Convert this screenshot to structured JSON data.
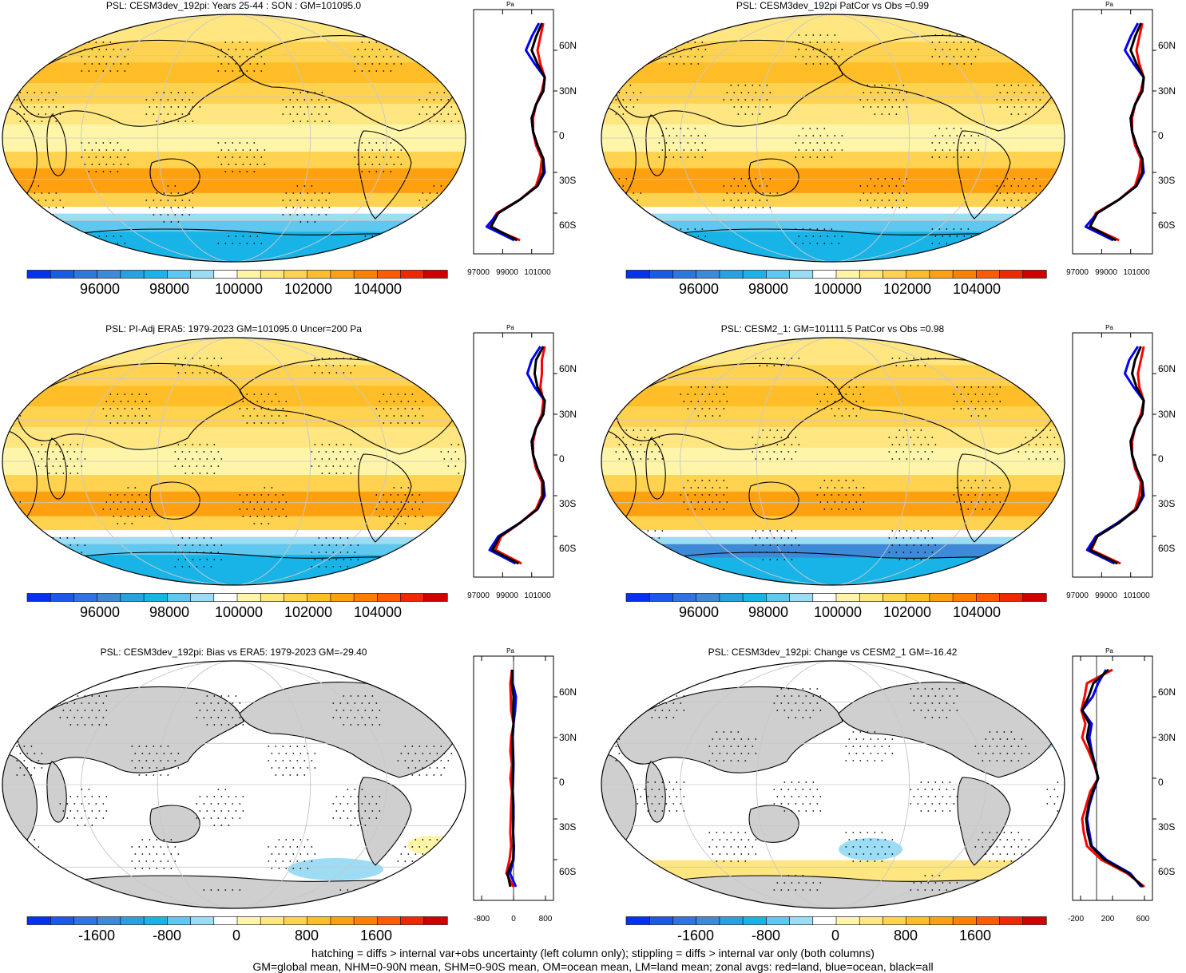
{
  "footer": {
    "line1": "hatching = diffs > internal var+obs uncertainty (left column only); stippling = diffs > internal var only (both columns)",
    "line2": "GM=global mean, NHM=0-90N mean, SHM=0-90S mean, OM=ocean mean, LM=land mean; zonal avgs: red=land, blue=ocean, black=all"
  },
  "colors": {
    "fill_colors": [
      "#0432f0",
      "#1a5ae8",
      "#2e75e0",
      "#3c8ad8",
      "#2aa0e0",
      "#18b4e8",
      "#5ec8f0",
      "#9cdcf4",
      "#ffffff",
      "#fff5a8",
      "#ffe680",
      "#ffd250",
      "#ffbe28",
      "#ffa010",
      "#ff8000",
      "#ff5a00",
      "#f02800",
      "#d00000"
    ],
    "land": "#cfcfcf",
    "grid": "#c8c8c8",
    "series_land": "#ff0000",
    "series_ocean": "#0000ff",
    "series_all": "#000000"
  },
  "chart_data": [
    {
      "id": "p1",
      "type": "contour-map",
      "title": "PSL: CESM3dev_192pi: Years 25-44 : SON : GM=101095.0",
      "colorbar": {
        "ticks": [
          "96000",
          "98000",
          "100000",
          "102000",
          "104000"
        ]
      },
      "zonal": {
        "unit": "Pa",
        "xticks": [
          "97000",
          "99000",
          "101000"
        ],
        "yticks": [
          "60N",
          "30N",
          "0",
          "30S",
          "60S"
        ],
        "series": [
          {
            "name": "land",
            "lat": [
              80,
              70,
              60,
              50,
              40,
              30,
              20,
              10,
              0,
              -10,
              -20,
              -30,
              -40,
              -50,
              -60,
              -70,
              -80
            ],
            "values": [
              101800,
              101600,
              101400,
              101600,
              101900,
              101700,
              101300,
              101100,
              101100,
              101300,
              101700,
              101600,
              101300,
              100200,
              98600,
              98000,
              100200
            ]
          },
          {
            "name": "ocean",
            "lat": [
              80,
              70,
              60,
              50,
              40,
              30,
              20,
              10,
              0,
              -10,
              -20,
              -30,
              -40,
              -50,
              -60,
              -70,
              -80
            ],
            "values": [
              101500,
              101000,
              100600,
              101200,
              101900,
              101800,
              101300,
              101000,
              101100,
              101400,
              101800,
              101900,
              101400,
              100200,
              98700,
              97900,
              99800
            ]
          },
          {
            "name": "all",
            "lat": [
              80,
              70,
              60,
              50,
              40,
              30,
              20,
              10,
              0,
              -10,
              -20,
              -30,
              -40,
              -50,
              -60,
              -70,
              -80
            ],
            "values": [
              101700,
              101300,
              101000,
              101400,
              101900,
              101800,
              101300,
              101000,
              101100,
              101400,
              101800,
              101800,
              101400,
              100200,
              98700,
              98200,
              100000
            ]
          }
        ]
      }
    },
    {
      "id": "p2",
      "type": "contour-map",
      "title": "PSL: CESM3dev_192pi PatCor vs Obs =0.99",
      "colorbar": {
        "ticks": [
          "96000",
          "98000",
          "100000",
          "102000",
          "104000"
        ]
      },
      "zonal": {
        "unit": "Pa",
        "xticks": [
          "97000",
          "99000",
          "101000"
        ],
        "yticks": [
          "60N",
          "30N",
          "0",
          "30S",
          "60S"
        ],
        "series": [
          {
            "name": "land",
            "lat": [
              80,
              70,
              60,
              50,
              40,
              30,
              20,
              10,
              0,
              -10,
              -20,
              -30,
              -40,
              -50,
              -60,
              -70,
              -80
            ],
            "values": [
              101800,
              101600,
              101400,
              101600,
              101900,
              101700,
              101300,
              101100,
              101100,
              101300,
              101700,
              101600,
              101300,
              100200,
              98600,
              98200,
              100200
            ]
          },
          {
            "name": "ocean",
            "lat": [
              80,
              70,
              60,
              50,
              40,
              30,
              20,
              10,
              0,
              -10,
              -20,
              -30,
              -40,
              -50,
              -60,
              -70,
              -80
            ],
            "values": [
              101500,
              101000,
              100600,
              101200,
              101900,
              101800,
              101300,
              101000,
              101100,
              101400,
              101800,
              101900,
              101400,
              100200,
              98700,
              97900,
              99800
            ]
          },
          {
            "name": "all",
            "lat": [
              80,
              70,
              60,
              50,
              40,
              30,
              20,
              10,
              0,
              -10,
              -20,
              -30,
              -40,
              -50,
              -60,
              -70,
              -80
            ],
            "values": [
              101700,
              101300,
              101000,
              101400,
              101900,
              101800,
              101300,
              101000,
              101100,
              101400,
              101800,
              101800,
              101400,
              100200,
              98700,
              98200,
              100000
            ]
          }
        ]
      }
    },
    {
      "id": "p3",
      "type": "contour-map",
      "title": "PSL: PI-Adj ERA5: 1979-2023 GM=101095.0 Uncer=200 Pa",
      "colorbar": {
        "ticks": [
          "96000",
          "98000",
          "100000",
          "102000",
          "104000"
        ]
      },
      "zonal": {
        "unit": "Pa",
        "xticks": [
          "97000",
          "99000",
          "101000"
        ],
        "yticks": [
          "60N",
          "30N",
          "0",
          "30S",
          "60S"
        ],
        "series": [
          {
            "name": "land",
            "lat": [
              80,
              70,
              60,
              50,
              40,
              30,
              20,
              10,
              0,
              -10,
              -20,
              -30,
              -40,
              -50,
              -60,
              -70,
              -80
            ],
            "values": [
              101900,
              101700,
              101700,
              101600,
              101800,
              101700,
              101300,
              101100,
              101100,
              101300,
              101700,
              101700,
              101300,
              100200,
              98900,
              98500,
              100300
            ]
          },
          {
            "name": "ocean",
            "lat": [
              80,
              70,
              60,
              50,
              40,
              30,
              20,
              10,
              0,
              -10,
              -20,
              -30,
              -40,
              -50,
              -60,
              -70,
              -80
            ],
            "values": [
              101600,
              101000,
              100700,
              101200,
              101900,
              101800,
              101300,
              101000,
              101100,
              101400,
              101800,
              101900,
              101400,
              100200,
              98700,
              98100,
              99900
            ]
          },
          {
            "name": "all",
            "lat": [
              80,
              70,
              60,
              50,
              40,
              30,
              20,
              10,
              0,
              -10,
              -20,
              -30,
              -40,
              -50,
              -60,
              -70,
              -80
            ],
            "values": [
              101800,
              101300,
              101200,
              101400,
              101900,
              101800,
              101300,
              101000,
              101100,
              101400,
              101800,
              101800,
              101400,
              100200,
              98800,
              98300,
              100100
            ]
          }
        ]
      }
    },
    {
      "id": "p4",
      "type": "contour-map",
      "title": "PSL: CESM2_1: GM=101111.5 PatCor vs Obs =0.98",
      "colorbar": {
        "ticks": [
          "96000",
          "98000",
          "100000",
          "102000",
          "104000"
        ]
      },
      "zonal": {
        "unit": "Pa",
        "xticks": [
          "97000",
          "99000",
          "101000"
        ],
        "yticks": [
          "60N",
          "30N",
          "0",
          "30S",
          "60S"
        ],
        "series": [
          {
            "name": "land",
            "lat": [
              80,
              70,
              60,
              50,
              40,
              30,
              20,
              10,
              0,
              -10,
              -20,
              -30,
              -40,
              -50,
              -60,
              -70,
              -80
            ],
            "values": [
              101900,
              101700,
              101500,
              101600,
              101900,
              101700,
              101300,
              101100,
              101100,
              101300,
              101700,
              101600,
              101300,
              100200,
              98700,
              98300,
              100300
            ]
          },
          {
            "name": "ocean",
            "lat": [
              80,
              70,
              60,
              50,
              40,
              30,
              20,
              10,
              0,
              -10,
              -20,
              -30,
              -40,
              -50,
              -60,
              -70,
              -80
            ],
            "values": [
              101500,
              100900,
              100600,
              101200,
              101900,
              101800,
              101300,
              101000,
              101100,
              101400,
              101800,
              101900,
              101400,
              100100,
              98600,
              98000,
              99900
            ]
          },
          {
            "name": "all",
            "lat": [
              80,
              70,
              60,
              50,
              40,
              30,
              20,
              10,
              0,
              -10,
              -20,
              -30,
              -40,
              -50,
              -60,
              -70,
              -80
            ],
            "values": [
              101700,
              101300,
              101100,
              101400,
              101900,
              101800,
              101300,
              101000,
              101100,
              101400,
              101800,
              101800,
              101400,
              100200,
              98700,
              98200,
              100100
            ]
          }
        ]
      }
    },
    {
      "id": "p5",
      "type": "contour-map",
      "title": "PSL: CESM3dev_192pi: Bias vs ERA5: 1979-2023  GM=-29.40",
      "colorbar": {
        "ticks": [
          "-1600",
          "-800",
          "0",
          "800",
          "1600"
        ]
      },
      "zonal": {
        "unit": "Pa",
        "xticks": [
          "-800",
          "0",
          "800"
        ],
        "yticks": [
          "60N",
          "30N",
          "0",
          "30S",
          "60S"
        ],
        "series": [
          {
            "name": "land",
            "lat": [
              80,
              70,
              60,
              50,
              40,
              30,
              20,
              10,
              0,
              -10,
              -20,
              -30,
              -40,
              -50,
              -60,
              -70,
              -80
            ],
            "values": [
              -40,
              -80,
              -70,
              -60,
              0,
              -60,
              -80,
              -40,
              -80,
              -40,
              -60,
              -70,
              -80,
              -60,
              -100,
              -180,
              0
            ]
          },
          {
            "name": "ocean",
            "lat": [
              80,
              70,
              60,
              50,
              40,
              30,
              20,
              10,
              0,
              -10,
              -20,
              -30,
              -40,
              -50,
              -60,
              -70,
              -80
            ],
            "values": [
              -30,
              -20,
              60,
              40,
              0,
              -20,
              -10,
              0,
              -10,
              -20,
              0,
              0,
              -10,
              10,
              0,
              -90,
              60
            ]
          },
          {
            "name": "all",
            "lat": [
              80,
              70,
              60,
              50,
              40,
              30,
              20,
              10,
              0,
              -10,
              -20,
              -30,
              -40,
              -50,
              -60,
              -70,
              -80
            ],
            "values": [
              -30,
              -40,
              0,
              -10,
              0,
              -30,
              -20,
              -10,
              -20,
              -20,
              -10,
              -10,
              -10,
              0,
              -10,
              -150,
              -80
            ]
          }
        ]
      }
    },
    {
      "id": "p6",
      "type": "contour-map",
      "title": "PSL: CESM3dev_192pi: Change vs CESM2_1 GM=-16.42",
      "colorbar": {
        "ticks": [
          "-1600",
          "-800",
          "0",
          "800",
          "1600"
        ]
      },
      "zonal": {
        "unit": "Pa",
        "xticks": [
          "-200",
          "200",
          "600"
        ],
        "yticks": [
          "60N",
          "30N",
          "0",
          "30S",
          "60S"
        ],
        "series": [
          {
            "name": "land",
            "lat": [
              80,
              70,
              60,
              50,
              40,
              30,
              20,
              10,
              0,
              -10,
              -20,
              -30,
              -40,
              -50,
              -60,
              -70,
              -80
            ],
            "values": [
              200,
              -120,
              -150,
              -190,
              -140,
              -180,
              -100,
              -30,
              20,
              -80,
              -130,
              -180,
              -160,
              -120,
              60,
              380,
              600
            ]
          },
          {
            "name": "ocean",
            "lat": [
              80,
              70,
              60,
              50,
              40,
              30,
              20,
              10,
              0,
              -10,
              -20,
              -30,
              -40,
              -50,
              -60,
              -70,
              -80
            ],
            "values": [
              120,
              20,
              -50,
              -180,
              -60,
              -90,
              -60,
              -20,
              20,
              -40,
              -90,
              -120,
              -90,
              -60,
              120,
              420,
              560
            ]
          },
          {
            "name": "all",
            "lat": [
              80,
              70,
              60,
              50,
              40,
              30,
              20,
              10,
              0,
              -10,
              -20,
              -30,
              -40,
              -50,
              -60,
              -70,
              -80
            ],
            "values": [
              150,
              -40,
              -100,
              -180,
              -90,
              -120,
              -70,
              -20,
              20,
              -50,
              -100,
              -130,
              -110,
              -70,
              100,
              400,
              580
            ]
          }
        ]
      }
    }
  ]
}
